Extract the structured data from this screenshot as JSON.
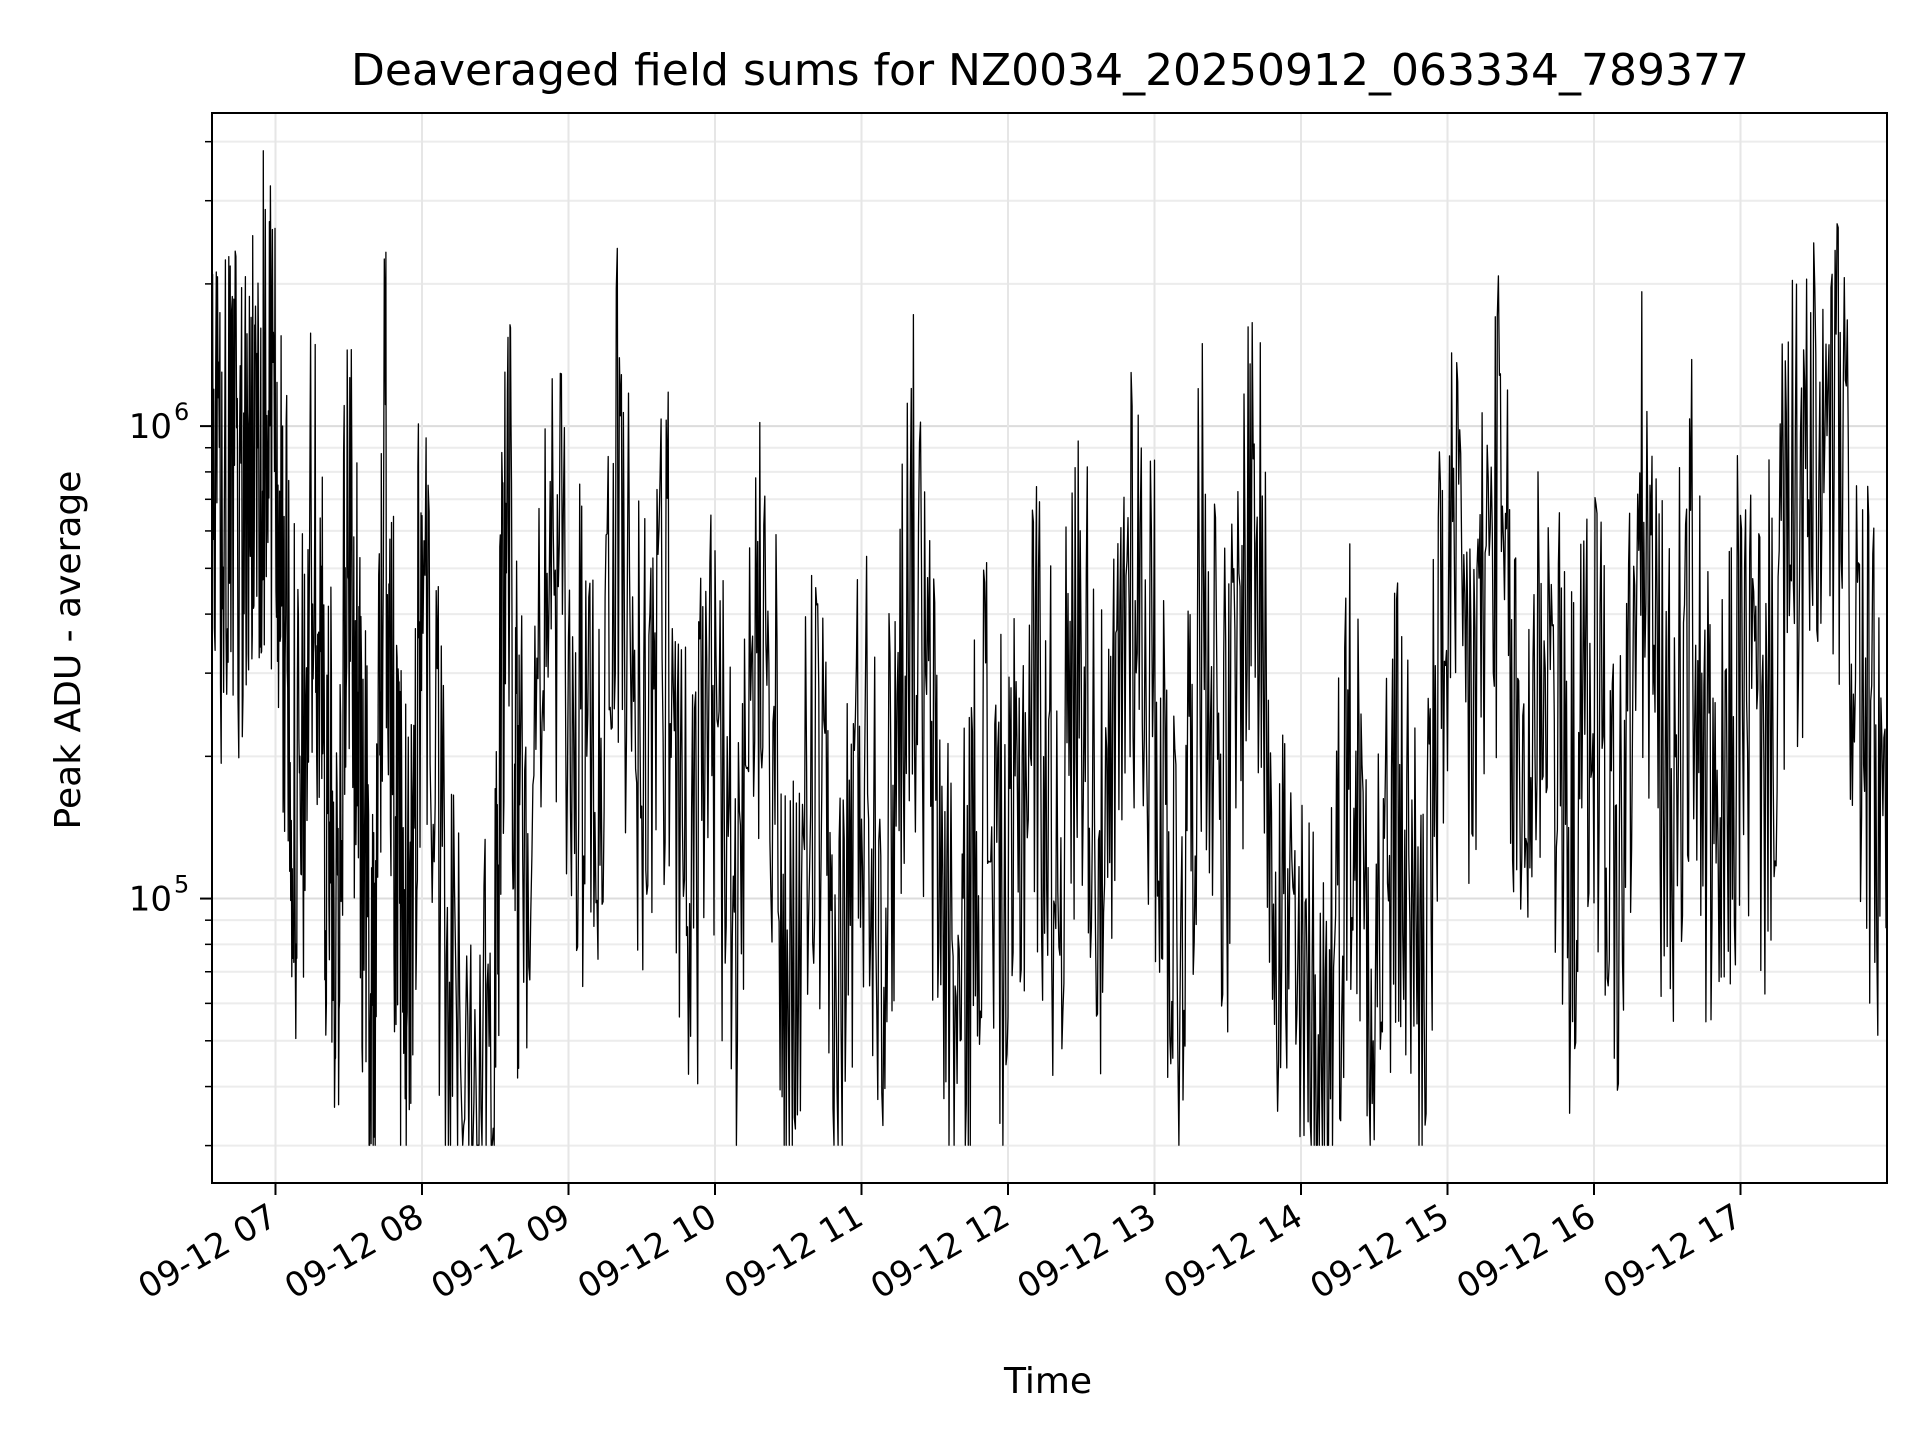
{
  "chart_data": {
    "type": "line",
    "title": "Deaveraged field sums for NZ0034_20250912_063334_789377",
    "xlabel": "Time",
    "ylabel": "Peak ADU - average",
    "yscale": "log",
    "xlim": [
      "2025-09-12 06:34",
      "2025-09-12 18:00"
    ],
    "ylim": [
      25000,
      4600000
    ],
    "grid": true,
    "line_color": "#000000",
    "x_ticks": [
      {
        "value": "2025-09-12 07:00",
        "label": "09-12 07"
      },
      {
        "value": "2025-09-12 08:00",
        "label": "09-12 08"
      },
      {
        "value": "2025-09-12 09:00",
        "label": "09-12 09"
      },
      {
        "value": "2025-09-12 10:00",
        "label": "09-12 10"
      },
      {
        "value": "2025-09-12 11:00",
        "label": "09-12 11"
      },
      {
        "value": "2025-09-12 12:00",
        "label": "09-12 12"
      },
      {
        "value": "2025-09-12 13:00",
        "label": "09-12 13"
      },
      {
        "value": "2025-09-12 14:00",
        "label": "09-12 14"
      },
      {
        "value": "2025-09-12 15:00",
        "label": "09-12 15"
      },
      {
        "value": "2025-09-12 16:00",
        "label": "09-12 16"
      },
      {
        "value": "2025-09-12 17:00",
        "label": "09-12 17"
      }
    ],
    "y_ticks": [
      {
        "value": 100000,
        "base": "10",
        "exp": "5"
      },
      {
        "value": 1000000,
        "base": "10",
        "exp": "6"
      }
    ],
    "series": [
      {
        "x": [
          "2025-09-12 06:34",
          "2025-09-12 06:40",
          "2025-09-12 06:47",
          "2025-09-12 06:51",
          "2025-09-12 06:55",
          "2025-09-12 07:00",
          "2025-09-12 07:05",
          "2025-09-12 07:10",
          "2025-09-12 07:15",
          "2025-09-12 07:20",
          "2025-09-12 07:25",
          "2025-09-12 07:30",
          "2025-09-12 07:35",
          "2025-09-12 07:40",
          "2025-09-12 07:45",
          "2025-09-12 07:50",
          "2025-09-12 07:55",
          "2025-09-12 08:00",
          "2025-09-12 08:10",
          "2025-09-12 08:20",
          "2025-09-12 08:30",
          "2025-09-12 08:35",
          "2025-09-12 08:40",
          "2025-09-12 08:50",
          "2025-09-12 09:00",
          "2025-09-12 09:10",
          "2025-09-12 09:20",
          "2025-09-12 09:30",
          "2025-09-12 09:40",
          "2025-09-12 09:50",
          "2025-09-12 10:00",
          "2025-09-12 10:10",
          "2025-09-12 10:20",
          "2025-09-12 10:30",
          "2025-09-12 10:40",
          "2025-09-12 10:50",
          "2025-09-12 11:00",
          "2025-09-12 11:10",
          "2025-09-12 11:20",
          "2025-09-12 11:30",
          "2025-09-12 11:40",
          "2025-09-12 11:50",
          "2025-09-12 12:00",
          "2025-09-12 12:10",
          "2025-09-12 12:20",
          "2025-09-12 12:30",
          "2025-09-12 12:40",
          "2025-09-12 12:50",
          "2025-09-12 13:00",
          "2025-09-12 13:10",
          "2025-09-12 13:20",
          "2025-09-12 13:30",
          "2025-09-12 13:40",
          "2025-09-12 13:50",
          "2025-09-12 14:00",
          "2025-09-12 14:10",
          "2025-09-12 14:20",
          "2025-09-12 14:30",
          "2025-09-12 14:40",
          "2025-09-12 14:50",
          "2025-09-12 15:00",
          "2025-09-12 15:10",
          "2025-09-12 15:20",
          "2025-09-12 15:30",
          "2025-09-12 15:40",
          "2025-09-12 15:50",
          "2025-09-12 16:00",
          "2025-09-12 16:10",
          "2025-09-12 16:20",
          "2025-09-12 16:30",
          "2025-09-12 16:40",
          "2025-09-12 16:50",
          "2025-09-12 17:00",
          "2025-09-12 17:10",
          "2025-09-12 17:20",
          "2025-09-12 17:30",
          "2025-09-12 17:40",
          "2025-09-12 17:50",
          "2025-09-12 18:00"
        ],
        "values": [
          600000,
          650000,
          700000,
          800000,
          1200000,
          900000,
          300000,
          120000,
          600000,
          200000,
          90000,
          700000,
          150000,
          60000,
          900000,
          100000,
          70000,
          600000,
          60000,
          45000,
          70000,
          900000,
          100000,
          600000,
          300000,
          150000,
          700000,
          200000,
          400000,
          100000,
          250000,
          60000,
          700000,
          40000,
          200000,
          50000,
          220000,
          100000,
          600000,
          150000,
          50000,
          200000,
          80000,
          300000,
          120000,
          400000,
          90000,
          600000,
          250000,
          80000,
          500000,
          150000,
          800000,
          120000,
          50000,
          45000,
          200000,
          80000,
          150000,
          70000,
          500000,
          250000,
          700000,
          150000,
          400000,
          120000,
          300000,
          100000,
          600000,
          150000,
          400000,
          90000,
          300000,
          200000,
          600000,
          700000,
          900000,
          250000,
          110000
        ]
      }
    ]
  }
}
